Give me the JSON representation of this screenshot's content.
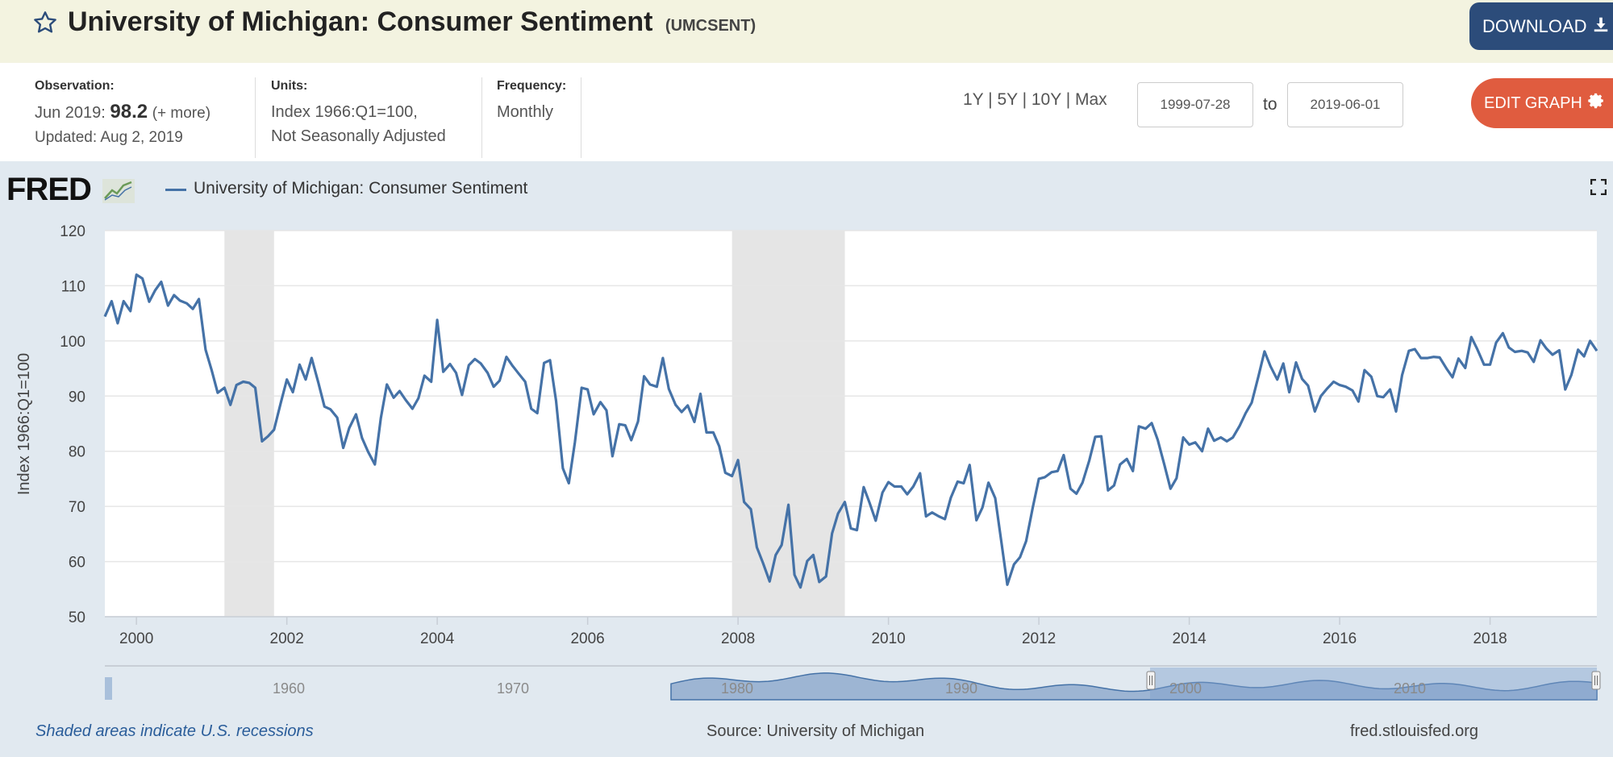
{
  "header": {
    "title": "University of Michigan: Consumer Sentiment",
    "series_id": "(UMCSENT)",
    "download_label": "DOWNLOAD"
  },
  "meta": {
    "observation_label": "Observation:",
    "observation_date": "Jun 2019:",
    "observation_value": "98.2",
    "observation_more": "(+ more)",
    "updated": "Updated: Aug 2, 2019",
    "units_label": "Units:",
    "units_line1": "Index 1966:Q1=100,",
    "units_line2": "Not Seasonally Adjusted",
    "frequency_label": "Frequency:",
    "frequency_value": "Monthly"
  },
  "range": {
    "presets": [
      "1Y",
      "5Y",
      "10Y",
      "Max"
    ],
    "separator": " | ",
    "start": "1999-07-28",
    "to_label": "to",
    "end": "2019-06-01"
  },
  "edit_label": "EDIT GRAPH",
  "legend_label": "University of Michigan: Consumer Sentiment",
  "logo_text": "FRED",
  "footer": {
    "recession_note": "Shaded areas indicate U.S. recessions",
    "source": "Source: University of Michigan",
    "url": "fred.stlouisfed.org"
  },
  "navigator": {
    "labels": [
      "1960",
      "1970",
      "1980",
      "1990",
      "2000",
      "2010"
    ]
  },
  "colors": {
    "line": "#4572a7",
    "recession": "#e5e5e5",
    "download_bg": "#2c4c7a",
    "edit_bg": "#e05c3f"
  },
  "chart_data": {
    "type": "line",
    "title": "",
    "xlabel": "",
    "ylabel": "Index 1966:Q1=100",
    "ylim": [
      50,
      120
    ],
    "xlim": [
      1999.58,
      2019.42
    ],
    "yticks": [
      50,
      60,
      70,
      80,
      90,
      100,
      110,
      120
    ],
    "xticks": [
      "2000",
      "2002",
      "2004",
      "2006",
      "2008",
      "2010",
      "2012",
      "2014",
      "2016",
      "2018"
    ],
    "grid": true,
    "recessions": [
      [
        2001.17,
        2001.83
      ],
      [
        2007.92,
        2009.42
      ]
    ],
    "series": [
      {
        "name": "University of Michigan: Consumer Sentiment",
        "x": [
          1999.58,
          1999.67,
          1999.75,
          1999.83,
          1999.92,
          2000.0,
          2000.08,
          2000.17,
          2000.25,
          2000.33,
          2000.42,
          2000.5,
          2000.58,
          2000.67,
          2000.75,
          2000.83,
          2000.92,
          2001.0,
          2001.08,
          2001.17,
          2001.25,
          2001.33,
          2001.42,
          2001.5,
          2001.58,
          2001.67,
          2001.75,
          2001.83,
          2001.92,
          2002.0,
          2002.08,
          2002.17,
          2002.25,
          2002.33,
          2002.42,
          2002.5,
          2002.58,
          2002.67,
          2002.75,
          2002.83,
          2002.92,
          2003.0,
          2003.08,
          2003.17,
          2003.25,
          2003.33,
          2003.42,
          2003.5,
          2003.58,
          2003.67,
          2003.75,
          2003.83,
          2003.92,
          2004.0,
          2004.08,
          2004.17,
          2004.25,
          2004.33,
          2004.42,
          2004.5,
          2004.58,
          2004.67,
          2004.75,
          2004.83,
          2004.92,
          2005.0,
          2005.08,
          2005.17,
          2005.25,
          2005.33,
          2005.42,
          2005.5,
          2005.58,
          2005.67,
          2005.75,
          2005.83,
          2005.92,
          2006.0,
          2006.08,
          2006.17,
          2006.25,
          2006.33,
          2006.42,
          2006.5,
          2006.58,
          2006.67,
          2006.75,
          2006.83,
          2006.92,
          2007.0,
          2007.08,
          2007.17,
          2007.25,
          2007.33,
          2007.42,
          2007.5,
          2007.58,
          2007.67,
          2007.75,
          2007.83,
          2007.92,
          2008.0,
          2008.08,
          2008.17,
          2008.25,
          2008.33,
          2008.42,
          2008.5,
          2008.58,
          2008.67,
          2008.75,
          2008.83,
          2008.92,
          2009.0,
          2009.08,
          2009.17,
          2009.25,
          2009.33,
          2009.42,
          2009.5,
          2009.58,
          2009.67,
          2009.75,
          2009.83,
          2009.92,
          2010.0,
          2010.08,
          2010.17,
          2010.25,
          2010.33,
          2010.42,
          2010.5,
          2010.58,
          2010.67,
          2010.75,
          2010.83,
          2010.92,
          2011.0,
          2011.08,
          2011.17,
          2011.25,
          2011.33,
          2011.42,
          2011.5,
          2011.58,
          2011.67,
          2011.75,
          2011.83,
          2011.92,
          2012.0,
          2012.08,
          2012.17,
          2012.25,
          2012.33,
          2012.42,
          2012.5,
          2012.58,
          2012.67,
          2012.75,
          2012.83,
          2012.92,
          2013.0,
          2013.08,
          2013.17,
          2013.25,
          2013.33,
          2013.42,
          2013.5,
          2013.58,
          2013.67,
          2013.75,
          2013.83,
          2013.92,
          2014.0,
          2014.08,
          2014.17,
          2014.25,
          2014.33,
          2014.42,
          2014.5,
          2014.58,
          2014.67,
          2014.75,
          2014.83,
          2014.92,
          2015.0,
          2015.08,
          2015.17,
          2015.25,
          2015.33,
          2015.42,
          2015.5,
          2015.58,
          2015.67,
          2015.75,
          2015.83,
          2015.92,
          2016.0,
          2016.08,
          2016.17,
          2016.25,
          2016.33,
          2016.42,
          2016.5,
          2016.58,
          2016.67,
          2016.75,
          2016.83,
          2016.92,
          2017.0,
          2017.08,
          2017.17,
          2017.25,
          2017.33,
          2017.42,
          2017.5,
          2017.58,
          2017.67,
          2017.75,
          2017.83,
          2017.92,
          2018.0,
          2018.08,
          2018.17,
          2018.25,
          2018.33,
          2018.42,
          2018.5,
          2018.58,
          2018.67,
          2018.75,
          2018.83,
          2018.92,
          2019.0,
          2019.08,
          2019.17,
          2019.25,
          2019.33,
          2019.42
        ],
        "values": [
          104.4,
          107.2,
          103.2,
          107.2,
          105.4,
          112.0,
          111.3,
          107.1,
          109.2,
          110.7,
          106.4,
          108.3,
          107.3,
          106.8,
          105.8,
          107.6,
          98.4,
          94.7,
          90.6,
          91.5,
          88.4,
          92.0,
          92.6,
          92.4,
          91.5,
          81.8,
          82.7,
          83.9,
          88.8,
          93.0,
          90.7,
          95.7,
          93.0,
          96.9,
          92.4,
          88.1,
          87.6,
          86.1,
          80.6,
          84.2,
          86.7,
          82.4,
          79.9,
          77.6,
          86.0,
          92.1,
          89.7,
          90.9,
          89.3,
          87.7,
          89.6,
          93.7,
          92.6,
          103.8,
          94.4,
          95.8,
          94.2,
          90.2,
          95.6,
          96.7,
          95.9,
          94.2,
          91.7,
          92.8,
          97.1,
          95.5,
          94.1,
          92.6,
          87.7,
          86.9,
          96.0,
          96.5,
          89.1,
          76.9,
          74.2,
          81.6,
          91.5,
          91.2,
          86.7,
          88.9,
          87.4,
          79.1,
          84.9,
          84.7,
          82.0,
          85.4,
          93.6,
          92.1,
          91.7,
          96.9,
          91.3,
          88.4,
          87.1,
          88.3,
          85.3,
          90.4,
          83.4,
          83.4,
          80.9,
          76.1,
          75.5,
          78.4,
          70.8,
          69.5,
          62.6,
          59.8,
          56.4,
          61.2,
          63.0,
          70.3,
          57.6,
          55.3,
          60.1,
          61.2,
          56.3,
          57.3,
          65.1,
          68.7,
          70.8,
          66.0,
          65.7,
          73.5,
          70.6,
          67.4,
          72.5,
          74.4,
          73.6,
          73.6,
          72.2,
          73.6,
          76.0,
          68.2,
          68.9,
          68.2,
          67.7,
          71.6,
          74.5,
          74.2,
          77.5,
          67.5,
          69.8,
          74.3,
          71.5,
          63.7,
          55.8,
          59.5,
          60.8,
          63.7,
          69.9,
          75.0,
          75.3,
          76.2,
          76.4,
          79.3,
          73.2,
          72.3,
          74.3,
          78.3,
          82.6,
          82.7,
          72.9,
          73.8,
          77.6,
          78.6,
          76.4,
          84.5,
          84.1,
          85.1,
          82.1,
          77.5,
          73.2,
          75.1,
          82.5,
          81.2,
          81.6,
          80.0,
          84.1,
          81.9,
          82.5,
          81.8,
          82.5,
          84.6,
          86.9,
          88.8,
          93.6,
          98.1,
          95.4,
          93.0,
          95.9,
          90.7,
          96.1,
          93.1,
          91.9,
          87.2,
          90.0,
          91.3,
          92.6,
          92.0,
          91.7,
          91.0,
          89.0,
          94.7,
          93.5,
          90.0,
          89.8,
          91.2,
          87.2,
          93.8,
          98.2,
          98.5,
          96.9,
          96.9,
          97.1,
          97.0,
          95.0,
          93.4,
          96.8,
          95.1,
          100.7,
          98.5,
          95.7,
          95.7,
          99.7,
          101.4,
          98.8,
          98.0,
          98.2,
          97.9,
          96.2,
          100.1,
          98.6,
          97.5,
          98.3,
          91.2,
          93.8,
          98.4,
          97.2,
          100.0,
          98.2
        ]
      }
    ]
  }
}
